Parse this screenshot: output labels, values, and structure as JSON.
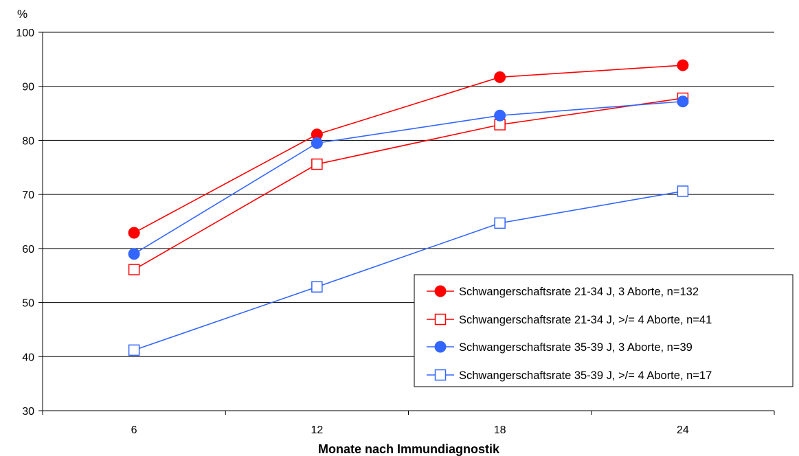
{
  "chart_data": {
    "type": "line",
    "title": "",
    "xlabel": "Monate nach Immundiagnostik",
    "ylabel": "%",
    "categories": [
      "6",
      "12",
      "18",
      "24"
    ],
    "ylim": [
      30,
      100
    ],
    "yticks": [
      "30",
      "40",
      "50",
      "60",
      "70",
      "80",
      "90",
      "100"
    ],
    "grid": "horizontal",
    "legend_position": "right",
    "series": [
      {
        "name": "Schwangerschaftsrate 21-34 J, 3 Aborte, n=132",
        "values": [
          62.9,
          81.1,
          91.7,
          93.9
        ],
        "color": "#ff0000",
        "marker": "filled-circle"
      },
      {
        "name": "Schwangerschaftsrate 21-34 J, >/= 4 Aborte, n=41",
        "values": [
          56.1,
          75.6,
          82.9,
          87.8
        ],
        "color": "#ff0000",
        "marker": "open-square"
      },
      {
        "name": "Schwangerschaftsrate 35-39 J, 3 Aborte, n=39",
        "values": [
          59.0,
          79.5,
          84.6,
          87.2
        ],
        "color": "#3366ff",
        "marker": "filled-circle"
      },
      {
        "name": "Schwangerschaftsrate 35-39 J, >/= 4 Aborte, n=17",
        "values": [
          41.2,
          52.9,
          64.7,
          70.6
        ],
        "color": "#3366ff",
        "marker": "open-square"
      }
    ]
  }
}
